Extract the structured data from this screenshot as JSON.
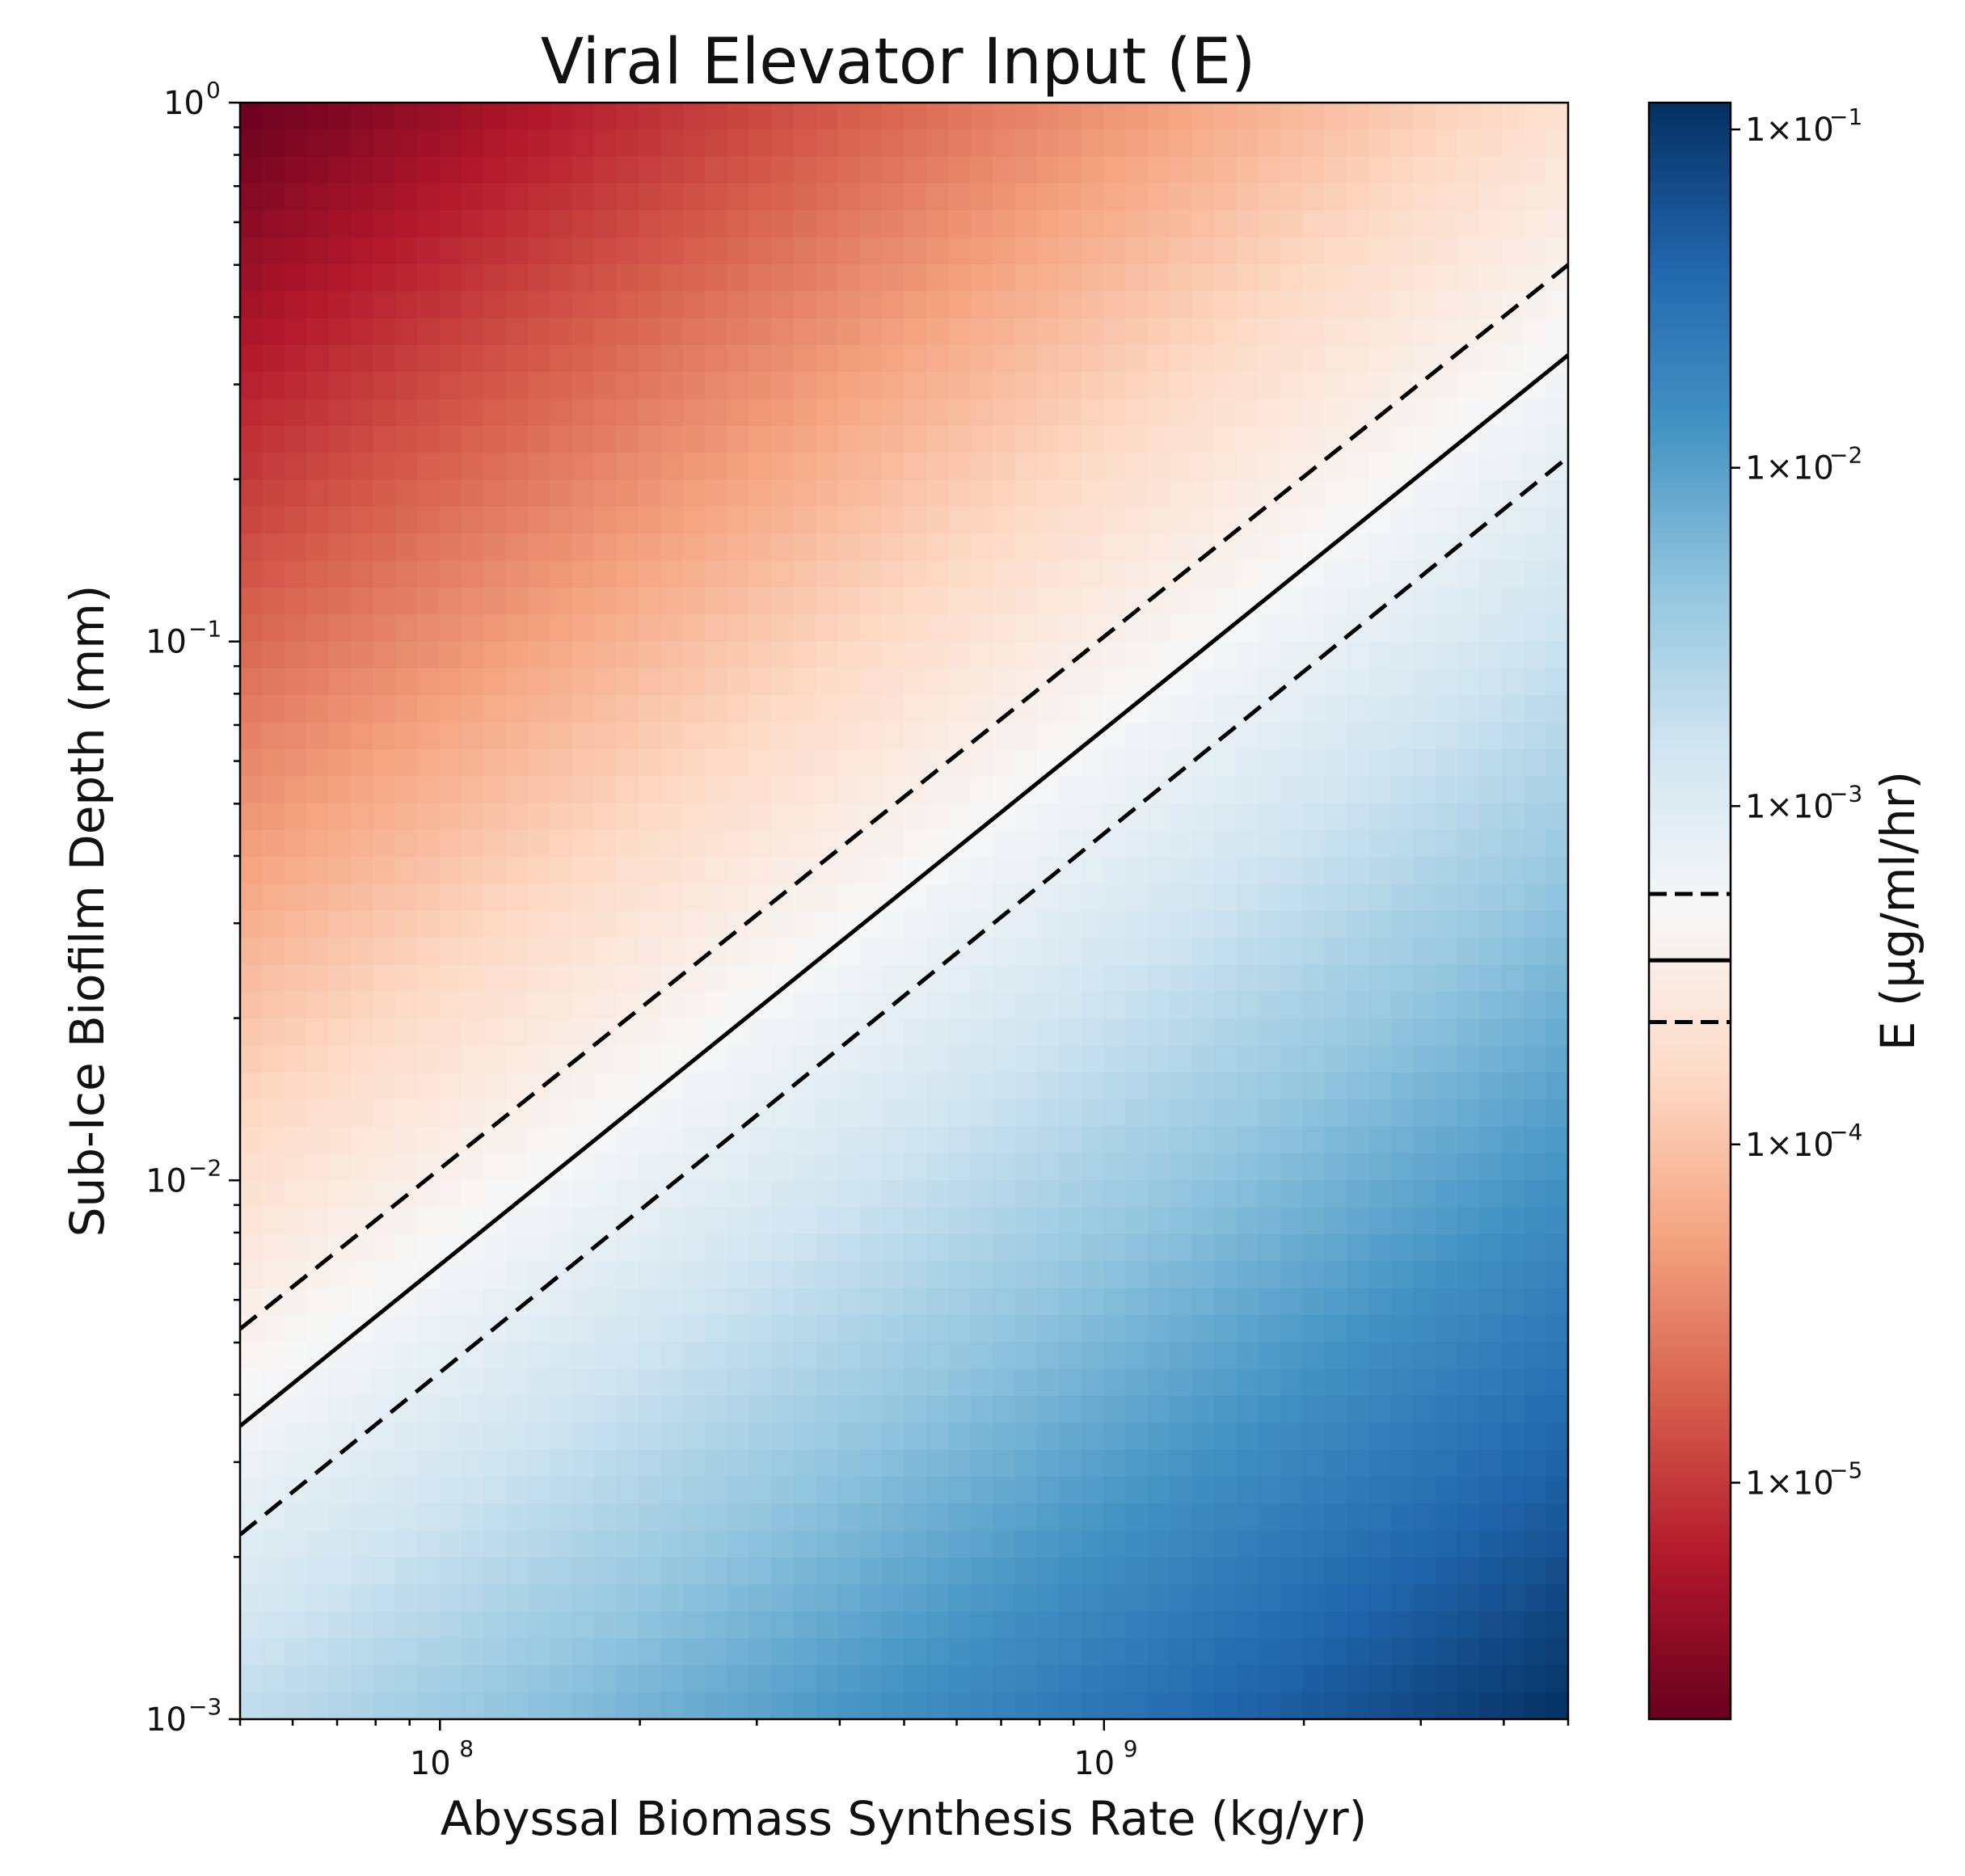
{
  "chart_data": {
    "type": "heatmap",
    "title": "Viral Elevator Input (E)",
    "xlabel": "Abyssal Biomass Synthesis Rate (kg/yr)",
    "ylabel": "Sub-Ice Biofilm Depth (mm)",
    "colorbar_label": "E (μg/ml/hr)",
    "x_scale": "log",
    "y_scale": "log",
    "xlim": [
      50000000.0,
      5000000000.0
    ],
    "ylim": [
      0.001,
      1
    ],
    "x_ticks": [
      {
        "value": 100000000.0,
        "base": "10",
        "exp": "8"
      },
      {
        "value": 1000000000.0,
        "base": "10",
        "exp": "9"
      }
    ],
    "y_ticks": [
      {
        "value": 1,
        "base": "10",
        "exp": "0"
      },
      {
        "value": 0.1,
        "base": "10",
        "exp": "−1"
      },
      {
        "value": 0.01,
        "base": "10",
        "exp": "−2"
      },
      {
        "value": 0.001,
        "base": "10",
        "exp": "−3"
      }
    ],
    "colorbar": {
      "scale": "log",
      "range": [
        2e-06,
        0.12
      ],
      "colormap": "RdBu",
      "colors": [
        "#67001f",
        "#b2182b",
        "#d6604d",
        "#f4a582",
        "#fddbc7",
        "#f7f7f7",
        "#d1e5f0",
        "#92c5de",
        "#4393c3",
        "#2166ac",
        "#053061"
      ],
      "ticks": [
        {
          "value": 1e-05,
          "label": "1×10",
          "exp": "−5"
        },
        {
          "value": 0.0001,
          "label": "1×10",
          "exp": "−4"
        },
        {
          "value": 0.001,
          "label": "1×10",
          "exp": "−3"
        },
        {
          "value": 0.01,
          "label": "1×10",
          "exp": "−2"
        },
        {
          "value": 0.1,
          "label": "1×10",
          "exp": "−1"
        }
      ],
      "contour_levels": [
        {
          "value": 0.00023,
          "style": "dashed"
        },
        {
          "value": 0.00035,
          "style": "solid"
        },
        {
          "value": 0.00055,
          "style": "dashed"
        }
      ]
    },
    "contour_lines": [
      {
        "style": "dashed",
        "points": [
          [
            50000000.0,
            0.0053
          ],
          [
            5000000000.0,
            0.5
          ]
        ]
      },
      {
        "style": "solid",
        "points": [
          [
            50000000.0,
            0.0035
          ],
          [
            5000000000.0,
            0.34
          ]
        ]
      },
      {
        "style": "dashed",
        "points": [
          [
            50000000.0,
            0.0022
          ],
          [
            5000000000.0,
            0.22
          ]
        ]
      }
    ],
    "field": {
      "description_of_trend": "E increases with x and decreases with y",
      "corner_values": {
        "top_left": 2e-06,
        "top_right": 0.0002,
        "bottom_left": 0.002,
        "bottom_right": 0.12
      }
    }
  }
}
